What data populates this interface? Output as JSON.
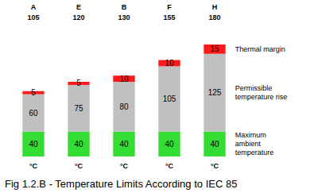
{
  "chart_data": {
    "type": "bar",
    "stacked": true,
    "title": "Fig 1.2.B - Temperature Limits According to IEC 85",
    "categories": [
      "A",
      "E",
      "B",
      "F",
      "H"
    ],
    "class_limits": [
      105,
      120,
      130,
      155,
      180
    ],
    "unit_label": "°C",
    "series": [
      {
        "name": "Maximum ambient temperature",
        "color": "#33dd33",
        "values": [
          40,
          40,
          40,
          40,
          40
        ]
      },
      {
        "name": "Permissible temperature rise",
        "color": "#c0c0c0",
        "values": [
          60,
          75,
          80,
          105,
          125
        ]
      },
      {
        "name": "Thermal margin",
        "color": "#ff1a1a",
        "values": [
          5,
          5,
          10,
          10,
          15
        ]
      }
    ],
    "ylim": [
      0,
      180
    ],
    "data_labels": true,
    "tick_labels": false,
    "legend": "right"
  }
}
